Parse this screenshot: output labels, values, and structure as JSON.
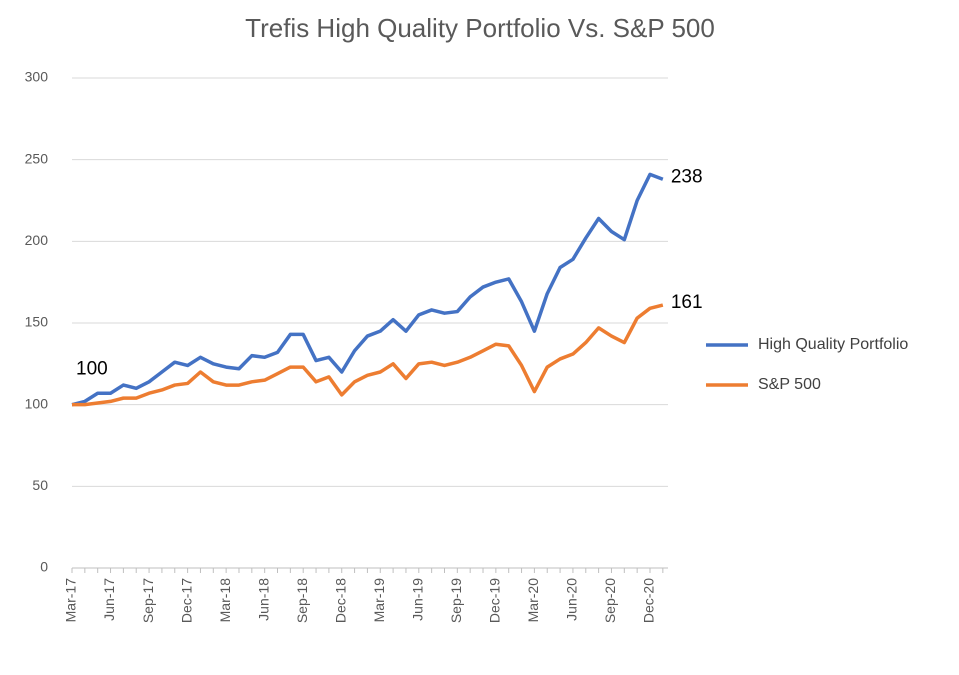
{
  "chart_data": {
    "type": "line",
    "title": "Trefis High Quality Portfolio Vs. S&P 500",
    "categories": [
      "Mar-17",
      null,
      null,
      "Jun-17",
      null,
      null,
      "Sep-17",
      null,
      null,
      "Dec-17",
      null,
      null,
      "Mar-18",
      null,
      null,
      "Jun-18",
      null,
      null,
      "Sep-18",
      null,
      null,
      "Dec-18",
      null,
      null,
      "Mar-19",
      null,
      null,
      "Jun-19",
      null,
      null,
      "Sep-19",
      null,
      null,
      "Dec-19",
      null,
      null,
      "Mar-20",
      null,
      null,
      "Jun-20",
      null,
      null,
      "Sep-20",
      null,
      null,
      "Dec-20",
      null
    ],
    "series": [
      {
        "name": "High Quality Portfolio",
        "color": "#4472c4",
        "values": [
          100,
          102,
          107,
          107,
          112,
          110,
          114,
          120,
          126,
          124,
          129,
          125,
          123,
          122,
          130,
          129,
          132,
          143,
          143,
          127,
          129,
          120,
          133,
          142,
          145,
          152,
          145,
          155,
          158,
          156,
          157,
          166,
          172,
          175,
          177,
          163,
          145,
          168,
          184,
          189,
          202,
          214,
          206,
          201,
          225,
          241,
          238
        ],
        "value_labels": [
          "100",
          null,
          null,
          null,
          null,
          null,
          null,
          null,
          null,
          null,
          null,
          null,
          null,
          null,
          null,
          null,
          null,
          null,
          null,
          null,
          null,
          null,
          null,
          null,
          null,
          null,
          null,
          null,
          null,
          null,
          null,
          null,
          null,
          null,
          null,
          null,
          null,
          null,
          null,
          null,
          null,
          null,
          null,
          null,
          null,
          null,
          "238"
        ]
      },
      {
        "name": "S&P 500",
        "color": "#ed7d31",
        "values": [
          100,
          100,
          101,
          102,
          104,
          104,
          107,
          109,
          112,
          113,
          120,
          114,
          112,
          112,
          114,
          115,
          119,
          123,
          123,
          114,
          117,
          106,
          114,
          118,
          120,
          125,
          116,
          125,
          126,
          124,
          126,
          129,
          133,
          137,
          136,
          124,
          108,
          123,
          128,
          131,
          138,
          147,
          142,
          138,
          153,
          159,
          161
        ],
        "value_labels": [
          null,
          null,
          null,
          null,
          null,
          null,
          null,
          null,
          null,
          null,
          null,
          null,
          null,
          null,
          null,
          null,
          null,
          null,
          null,
          null,
          null,
          null,
          null,
          null,
          null,
          null,
          null,
          null,
          null,
          null,
          null,
          null,
          null,
          null,
          null,
          null,
          null,
          null,
          null,
          null,
          null,
          null,
          null,
          null,
          null,
          null,
          "161"
        ]
      }
    ],
    "ylim": [
      0,
      300
    ],
    "yticks": [
      0,
      50,
      100,
      150,
      200,
      250,
      300
    ],
    "grid": true,
    "legend": "right"
  }
}
